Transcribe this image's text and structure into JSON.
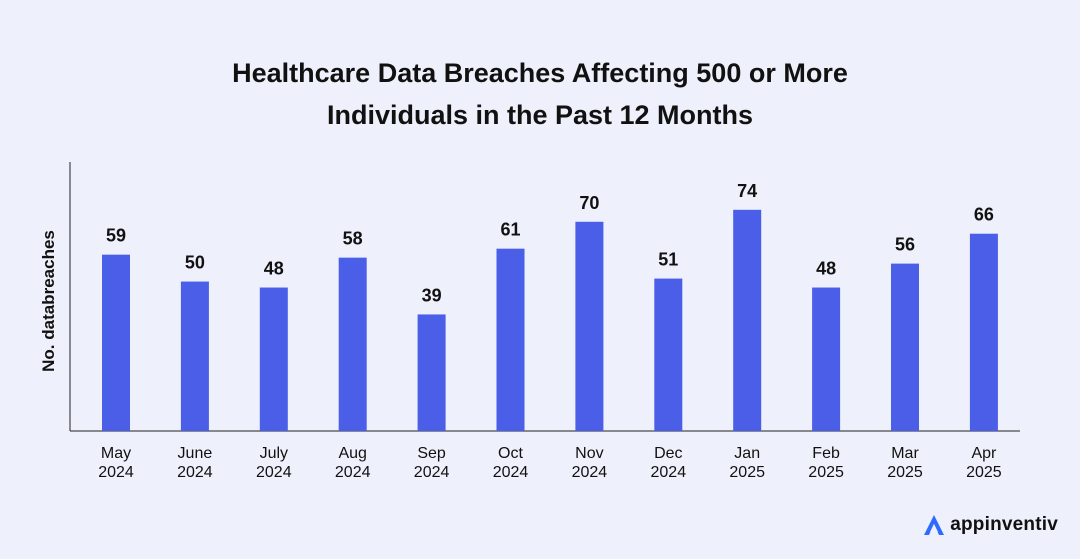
{
  "chart_data": {
    "type": "bar",
    "title_lines": [
      "Healthcare Data Breaches Affecting 500 or More",
      "Individuals in the Past 12 Months"
    ],
    "categories": [
      [
        "May",
        "2024"
      ],
      [
        "June",
        "2024"
      ],
      [
        "July",
        "2024"
      ],
      [
        "Aug",
        "2024"
      ],
      [
        "Sep",
        "2024"
      ],
      [
        "Oct",
        "2024"
      ],
      [
        "Nov",
        "2024"
      ],
      [
        "Dec",
        "2024"
      ],
      [
        "Jan",
        "2025"
      ],
      [
        "Feb",
        "2025"
      ],
      [
        "Mar",
        "2025"
      ],
      [
        "Apr",
        "2025"
      ]
    ],
    "values": [
      59,
      50,
      48,
      58,
      39,
      61,
      70,
      51,
      74,
      48,
      56,
      66
    ],
    "xlabel": "",
    "ylabel": "No. databreaches",
    "ylim": [
      0,
      90
    ],
    "grid": false,
    "bar_color": "#4a5ee8"
  },
  "branding": {
    "name": "appinventiv",
    "accent": "#2f6bff"
  }
}
